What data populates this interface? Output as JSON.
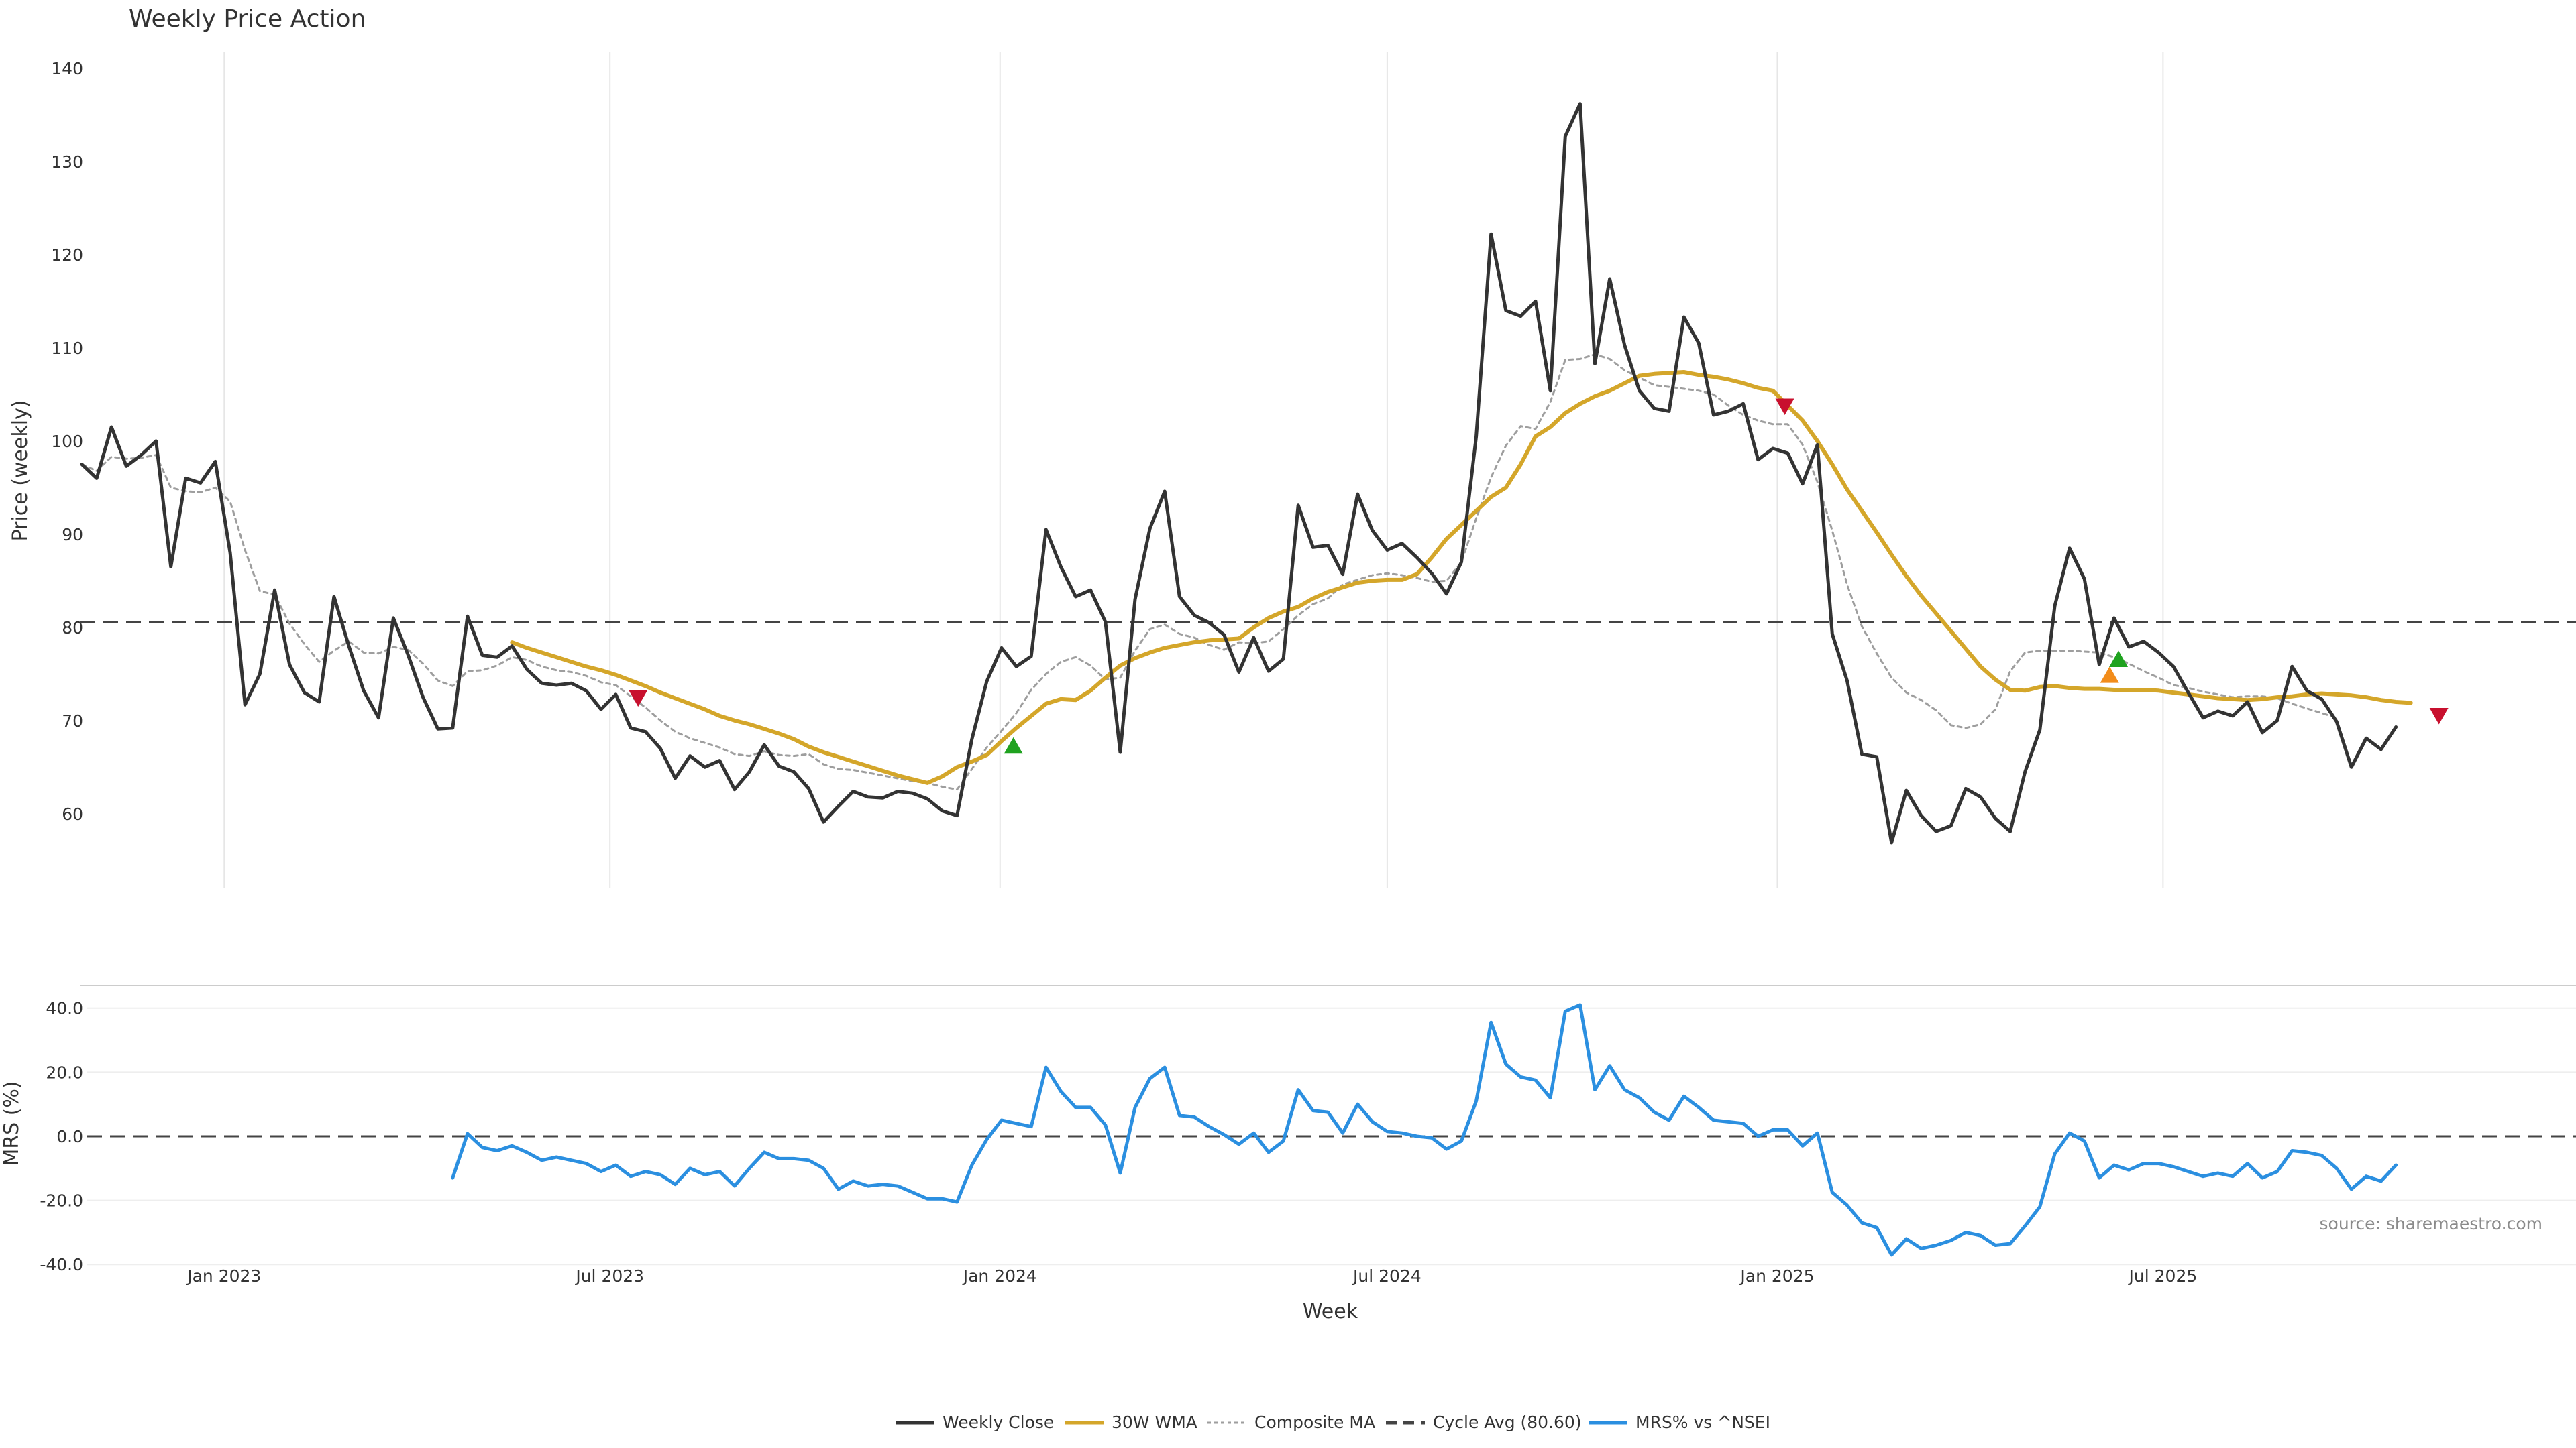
{
  "chart_data": [
    {
      "type": "line",
      "title": "Weekly Price Action",
      "ylabel": "Price (weekly)",
      "xlabel": "",
      "ylim": [
        52,
        141
      ],
      "yticks": [
        60,
        70,
        80,
        90,
        100,
        110,
        120,
        130,
        140
      ],
      "x_start": "2022-10-28",
      "x_tick_labels": [
        "Jan 2023",
        "Jul 2023",
        "Jan 2024",
        "Jul 2024",
        "Jan 2025",
        "Jul 2025"
      ],
      "x_tick_positions": [
        9.6,
        35.6,
        61.9,
        88.0,
        114.3,
        140.3
      ],
      "grid": "vertical",
      "series": [
        {
          "name": "Weekly Close",
          "color": "#333333",
          "style": "solid",
          "start_week": 0,
          "values": [
            97.5,
            96,
            101.5,
            97.3,
            98.5,
            100,
            86.5,
            96,
            95.5,
            97.8,
            88,
            71.7,
            75,
            84,
            76,
            73,
            72,
            83.3,
            78,
            73.2,
            70.3,
            81,
            77,
            72.5,
            69.1,
            69.2,
            81.2,
            77,
            76.8,
            78,
            75.5,
            74,
            73.8,
            74,
            73.2,
            71.2,
            72.8,
            69.2,
            68.8,
            67,
            63.8,
            66.2,
            65,
            65.7,
            62.6,
            64.5,
            67.4,
            65.1,
            64.5,
            62.7,
            59.1,
            60.8,
            62.4,
            61.8,
            61.7,
            62.4,
            62.2,
            61.6,
            60.3,
            59.8,
            68,
            74.2,
            77.8,
            75.8,
            76.9,
            90.5,
            86.5,
            83.3,
            84,
            80.6,
            66.6,
            83,
            90.6,
            94.6,
            83.3,
            81.3,
            80.5,
            79.2,
            75.2,
            78.9,
            75.3,
            76.6,
            93.1,
            88.6,
            88.8,
            85.7,
            94.3,
            90.4,
            88.3,
            89,
            87.5,
            85.8,
            83.6,
            87,
            100.5,
            122.2,
            114,
            113.4,
            115,
            105.4,
            132.7,
            136.2,
            108.3,
            117.4,
            110.3,
            105.4,
            103.5,
            103.2,
            113.3,
            110.5,
            102.8,
            103.2,
            104,
            98,
            99.2,
            98.7,
            95.4,
            99.6,
            79.3,
            74.3,
            66.4,
            66.1,
            56.9,
            62.5,
            59.8,
            58.1,
            58.7,
            62.7,
            61.8,
            59.5,
            58.1,
            64.5,
            69,
            82.3,
            88.5,
            85.2,
            76,
            81,
            77.9,
            78.5,
            77.3,
            75.8,
            73,
            70.3,
            71,
            70.5,
            72,
            68.7,
            70,
            75.8,
            73.2,
            72.3,
            69.9,
            65,
            68.1,
            66.9,
            69.3
          ]
        },
        {
          "name": "30W WMA",
          "color": "#D4A62A",
          "style": "solid",
          "start_week": 29,
          "values": [
            78.4,
            77.8,
            77.3,
            76.8,
            76.3,
            75.8,
            75.4,
            74.9,
            74.3,
            73.7,
            73,
            72.4,
            71.8,
            71.2,
            70.5,
            70,
            69.6,
            69.1,
            68.6,
            68,
            67.2,
            66.6,
            66.1,
            65.6,
            65.1,
            64.6,
            64.1,
            63.7,
            63.3,
            64,
            65,
            65.6,
            66.3,
            67.8,
            69.2,
            70.5,
            71.8,
            72.3,
            72.2,
            73.2,
            74.6,
            75.9,
            76.7,
            77.3,
            77.8,
            78.1,
            78.4,
            78.6,
            78.7,
            78.8,
            80,
            81,
            81.7,
            82.2,
            83.1,
            83.8,
            84.3,
            84.8,
            85,
            85.1,
            85.1,
            85.7,
            87.5,
            89.5,
            91,
            92.5,
            94,
            95,
            97.5,
            100.5,
            101.5,
            103,
            104,
            104.8,
            105.4,
            106.2,
            107,
            107.2,
            107.3,
            107.4,
            107.1,
            106.9,
            106.6,
            106.2,
            105.7,
            105.4,
            103.8,
            102.2,
            100,
            97.5,
            94.8,
            92.5,
            90.2,
            87.8,
            85.5,
            83.4,
            81.5,
            79.6,
            77.7,
            75.8,
            74.4,
            73.3,
            73.2,
            73.6,
            73.7,
            73.5,
            73.4,
            73.4,
            73.3,
            73.3,
            73.3,
            73.2,
            73,
            72.8,
            72.6,
            72.4,
            72.3,
            72.2,
            72.3,
            72.5,
            72.6,
            72.8,
            72.9,
            72.8,
            72.7,
            72.5,
            72.2,
            72,
            71.9
          ]
        },
        {
          "name": "Composite MA",
          "color": "#9E9E9E",
          "style": "dotted",
          "start_week": 0,
          "values": [
            97.5,
            96.8,
            98.3,
            98.1,
            98.2,
            98.5,
            95,
            94.6,
            94.5,
            95,
            93.5,
            88.3,
            83.9,
            83.5,
            80.4,
            78.2,
            76.3,
            77.5,
            78.5,
            77.3,
            77.2,
            77.9,
            77.6,
            76.1,
            74.3,
            73.7,
            75.3,
            75.4,
            75.9,
            76.8,
            76.5,
            75.8,
            75.4,
            75.2,
            74.8,
            74.1,
            73.8,
            72.6,
            71.4,
            70,
            68.8,
            68.1,
            67.6,
            67.1,
            66.4,
            66.2,
            66.7,
            66.3,
            66.2,
            66.4,
            65.3,
            64.8,
            64.7,
            64.4,
            64.1,
            63.8,
            63.5,
            63.3,
            62.9,
            62.6,
            64.8,
            67.1,
            68.9,
            70.8,
            73.3,
            75,
            76.3,
            76.8,
            75.9,
            74.4,
            74.6,
            77.5,
            79.8,
            80.3,
            79.3,
            78.9,
            78.1,
            77.6,
            78.4,
            78.3,
            78.5,
            79.8,
            81.3,
            82.5,
            83.1,
            84.6,
            85.1,
            85.6,
            85.8,
            85.6,
            85.3,
            84.9,
            85,
            87,
            91.7,
            96.1,
            99.5,
            101.6,
            101.3,
            104.2,
            108.7,
            108.8,
            109.3,
            108.8,
            107.6,
            106.8,
            106,
            105.8,
            105.6,
            105.4,
            105,
            103.8,
            102.8,
            102.2,
            101.8,
            101.8,
            99.6,
            95.6,
            90.4,
            84.6,
            80.1,
            77.2,
            74.6,
            73,
            72.2,
            71.1,
            69.5,
            69.2,
            69.6,
            71.2,
            75.3,
            77.3,
            77.5,
            77.5,
            77.5,
            77.4,
            77.3,
            76.8,
            76.1,
            75.3,
            74.6,
            73.8,
            73.5,
            73.1,
            72.8,
            72.5,
            72.6,
            72.6,
            72.4,
            71.8,
            71.3,
            70.8,
            70.3
          ]
        },
        {
          "name": "Cycle Avg (80.60)",
          "color": "#444444",
          "style": "dashed",
          "constant": 80.6
        }
      ],
      "markers": [
        {
          "week": 37.5,
          "value": 72.5,
          "shape": "triangle-down",
          "color": "#C8102E"
        },
        {
          "week": 62.8,
          "value": 67.2,
          "shape": "triangle-up",
          "color": "#1FA21F"
        },
        {
          "week": 114.8,
          "value": 103.8,
          "shape": "triangle-down",
          "color": "#C8102E"
        },
        {
          "week": 136.7,
          "value": 74.8,
          "shape": "triangle-up",
          "color": "#F28C1A"
        },
        {
          "week": 137.3,
          "value": 76.5,
          "shape": "triangle-up",
          "color": "#1FA21F"
        },
        {
          "week": 158.9,
          "value": 70.6,
          "shape": "triangle-down",
          "color": "#C8102E"
        }
      ]
    },
    {
      "type": "line",
      "title": "",
      "xlabel": "Week",
      "ylabel": "MRS (%)",
      "ylim": [
        -41,
        46
      ],
      "yticks": [
        -40,
        -20,
        0,
        20,
        40
      ],
      "ytick_labels": [
        "-40.0",
        "-20.0",
        "0.0",
        "20.0",
        "40.0"
      ],
      "zero_line": "dashed",
      "series": [
        {
          "name": "MRS% vs ^NSEI",
          "color": "#2B8FE0",
          "style": "solid",
          "start_week": 25,
          "values": [
            -13,
            0.8,
            -3.5,
            -4.5,
            -3,
            -5,
            -7.5,
            -6.5,
            -7.5,
            -8.5,
            -11,
            -9,
            -12.5,
            -11,
            -12,
            -15,
            -10,
            -12,
            -11,
            -15.5,
            -10,
            -5,
            -7,
            -7,
            -7.5,
            -10,
            -16.5,
            -14,
            -15.5,
            -15,
            -15.5,
            -17.5,
            -19.5,
            -19.5,
            -20.5,
            -9,
            -1,
            5,
            4,
            3,
            21.5,
            14,
            9,
            9,
            3.5,
            -11.5,
            9,
            18,
            21.5,
            6.5,
            6,
            3,
            0.5,
            -2.5,
            1,
            -5,
            -1.5,
            14.5,
            8,
            7.5,
            1,
            10,
            4.5,
            1.5,
            1,
            0,
            -0.5,
            -4,
            -1.5,
            11,
            35.5,
            22.5,
            18.5,
            17.5,
            12,
            39,
            41,
            14.5,
            22,
            14.5,
            12,
            7.5,
            5,
            12.5,
            9,
            5,
            4.5,
            4,
            0,
            2,
            2,
            -3,
            1,
            -17.5,
            -21.5,
            -27,
            -28.5,
            -37,
            -32,
            -35,
            -34,
            -32.5,
            -30,
            -31,
            -34,
            -33.5,
            -28,
            -22,
            -5.5,
            1,
            -1.5,
            -13,
            -9,
            -10.5,
            -8.5,
            -8.5,
            -9.5,
            -11,
            -12.5,
            -11.5,
            -12.5,
            -8.5,
            -13,
            -11,
            -4.5,
            -5,
            -6,
            -10,
            -16.5,
            -12.5,
            -14,
            -9
          ]
        }
      ],
      "source": "source: sharemaestro.com"
    }
  ],
  "legend": {
    "position": "bottom-center",
    "items": [
      {
        "label": "Weekly Close",
        "color": "#333333",
        "style": "solid"
      },
      {
        "label": "30W WMA",
        "color": "#D4A62A",
        "style": "solid"
      },
      {
        "label": "Composite MA",
        "color": "#9E9E9E",
        "style": "dotted"
      },
      {
        "label": "Cycle Avg (80.60)",
        "color": "#444444",
        "style": "dashed"
      },
      {
        "label": "MRS% vs ^NSEI",
        "color": "#2B8FE0",
        "style": "solid"
      }
    ]
  }
}
